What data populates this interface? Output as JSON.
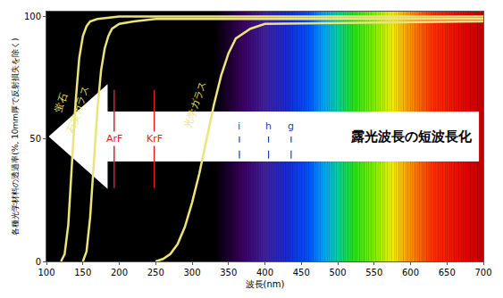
{
  "chart_data": {
    "type": "line",
    "x_label": "波長(nm)",
    "y_label": "各種光学材料の透過率(%, 10mm厚で反射損失を除く)",
    "xlim": [
      100,
      700
    ],
    "xticks": [
      100,
      150,
      200,
      250,
      300,
      350,
      400,
      450,
      500,
      550,
      600,
      650,
      700
    ],
    "ylim": [
      0,
      102
    ],
    "yticks": [
      0,
      50,
      100
    ],
    "grid": false,
    "series": [
      {
        "name": "蛍石",
        "color": "#ece47a",
        "x": [
          120,
          125,
          130,
          135,
          140,
          145,
          150,
          155,
          160,
          170,
          200,
          700
        ],
        "values": [
          0,
          3,
          15,
          40,
          65,
          83,
          92,
          96,
          98,
          99,
          100,
          100
        ]
      },
      {
        "name": "石英ガラス",
        "color": "#ece47a",
        "x": [
          150,
          155,
          160,
          165,
          170,
          175,
          180,
          185,
          190,
          200,
          220,
          250,
          700
        ],
        "values": [
          0,
          4,
          18,
          40,
          62,
          78,
          87,
          92,
          95,
          97,
          98,
          99,
          99
        ]
      },
      {
        "name": "光学ガラス",
        "color": "#ece47a",
        "x": [
          250,
          260,
          270,
          280,
          290,
          300,
          310,
          320,
          330,
          340,
          350,
          360,
          380,
          400,
          700
        ],
        "values": [
          0,
          1,
          3,
          7,
          14,
          24,
          36,
          50,
          64,
          76,
          85,
          91,
          95,
          97,
          98
        ]
      }
    ],
    "annotations": [
      {
        "text": "ArF",
        "x": 193,
        "color": "#e02020",
        "line_style": "solid"
      },
      {
        "text": "KrF",
        "x": 248,
        "color": "#e02020",
        "line_style": "solid"
      },
      {
        "text": "i",
        "x": 365,
        "color": "#2040c0",
        "line_style": "dash"
      },
      {
        "text": "h",
        "x": 405,
        "color": "#2040c0",
        "line_style": "dash"
      },
      {
        "text": "g",
        "x": 436,
        "color": "#2040c0",
        "line_style": "dash"
      },
      {
        "text": "露光波長の短波長化"
      }
    ]
  }
}
